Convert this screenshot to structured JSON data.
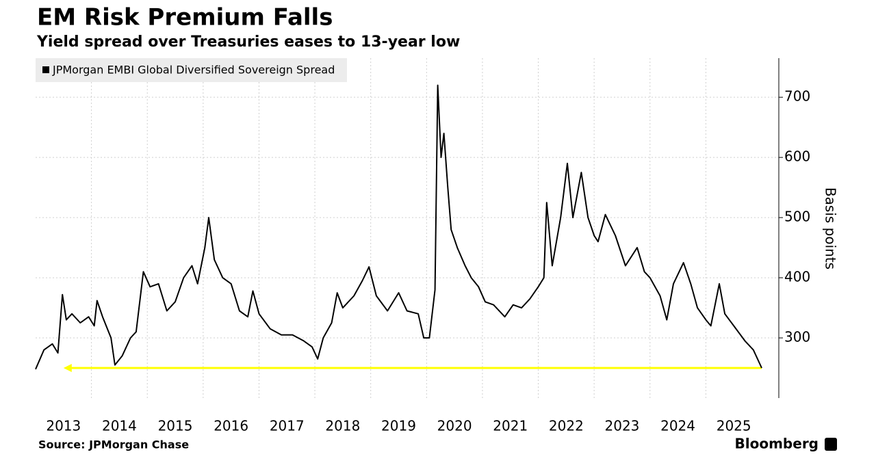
{
  "chart_data": {
    "type": "line",
    "title": "EM Risk Premium Falls",
    "subtitle": "Yield spread over Treasuries eases to 13-year low",
    "y_label": "Basis points",
    "source": "Source: JPMorgan Chase",
    "brand": "Bloomberg",
    "x": [
      2013.0,
      2013.15,
      2013.3,
      2013.4,
      2013.48,
      2013.55,
      2013.65,
      2013.8,
      2013.95,
      2014.05,
      2014.1,
      2014.2,
      2014.35,
      2014.42,
      2014.55,
      2014.7,
      2014.8,
      2014.93,
      2015.05,
      2015.2,
      2015.35,
      2015.5,
      2015.65,
      2015.8,
      2015.9,
      2016.03,
      2016.1,
      2016.2,
      2016.35,
      2016.5,
      2016.65,
      2016.8,
      2016.89,
      2017.0,
      2017.2,
      2017.4,
      2017.6,
      2017.8,
      2017.95,
      2018.05,
      2018.15,
      2018.3,
      2018.4,
      2018.5,
      2018.7,
      2018.85,
      2018.97,
      2019.1,
      2019.3,
      2019.5,
      2019.65,
      2019.85,
      2019.95,
      2020.05,
      2020.15,
      2020.2,
      2020.26,
      2020.31,
      2020.38,
      2020.44,
      2020.55,
      2020.69,
      2020.8,
      2020.93,
      2021.05,
      2021.2,
      2021.4,
      2021.55,
      2021.7,
      2021.85,
      2022.0,
      2022.1,
      2022.15,
      2022.25,
      2022.4,
      2022.52,
      2022.62,
      2022.77,
      2022.89,
      2023.0,
      2023.07,
      2023.2,
      2023.38,
      2023.56,
      2023.77,
      2023.9,
      2024.0,
      2024.18,
      2024.3,
      2024.42,
      2024.6,
      2024.73,
      2024.85,
      2025.0,
      2025.09,
      2025.24,
      2025.34,
      2025.5,
      2025.7,
      2025.85,
      2026.0
    ],
    "series": [
      {
        "name": "JPMorgan EMBI Global Diversified Sovereign Spread",
        "color": "#000000",
        "values": [
          248,
          280,
          290,
          275,
          372,
          330,
          340,
          325,
          335,
          320,
          362,
          335,
          300,
          255,
          270,
          300,
          310,
          410,
          385,
          390,
          345,
          360,
          400,
          420,
          390,
          450,
          500,
          430,
          400,
          390,
          345,
          335,
          378,
          340,
          315,
          305,
          305,
          295,
          285,
          265,
          300,
          325,
          375,
          350,
          370,
          395,
          418,
          370,
          345,
          375,
          345,
          340,
          300,
          300,
          380,
          720,
          600,
          640,
          550,
          480,
          450,
          420,
          400,
          385,
          360,
          355,
          335,
          355,
          350,
          365,
          385,
          400,
          525,
          420,
          500,
          590,
          500,
          575,
          500,
          470,
          460,
          505,
          470,
          420,
          450,
          410,
          400,
          370,
          330,
          390,
          425,
          390,
          350,
          330,
          320,
          390,
          340,
          320,
          295,
          280,
          250
        ]
      }
    ],
    "xlim": [
      2013,
      2026
    ],
    "ylim": [
      200,
      765
    ],
    "yticks": [
      300,
      400,
      500,
      600,
      700
    ],
    "xticks": [
      {
        "value": 2013.5,
        "label": "2013"
      },
      {
        "value": 2014.5,
        "label": "2014"
      },
      {
        "value": 2015.5,
        "label": "2015"
      },
      {
        "value": 2016.5,
        "label": "2016"
      },
      {
        "value": 2017.5,
        "label": "2017"
      },
      {
        "value": 2018.5,
        "label": "2018"
      },
      {
        "value": 2019.5,
        "label": "2019"
      },
      {
        "value": 2020.5,
        "label": "2020"
      },
      {
        "value": 2021.5,
        "label": "2021"
      },
      {
        "value": 2022.5,
        "label": "2022"
      },
      {
        "value": 2023.5,
        "label": "2023"
      },
      {
        "value": 2024.5,
        "label": "2024"
      },
      {
        "value": 2025.5,
        "label": "2025"
      }
    ],
    "xgrid": [
      2014,
      2015,
      2016,
      2017,
      2018,
      2019,
      2020,
      2021,
      2022,
      2023,
      2024,
      2025
    ],
    "grid": true,
    "legend": "top-left",
    "annotation_arrow": {
      "value": 250,
      "x": [
        2013.5,
        2026
      ],
      "color": "#ffff00"
    }
  }
}
